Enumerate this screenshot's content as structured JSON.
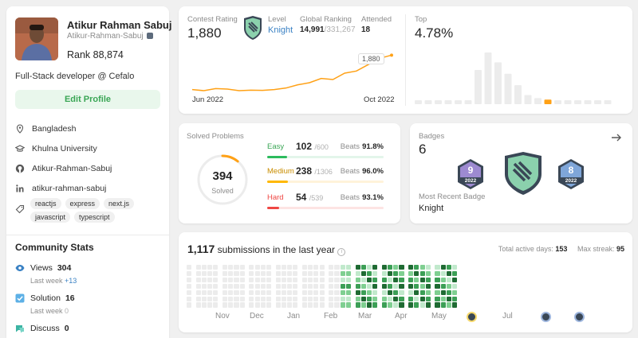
{
  "profile": {
    "name": "Atikur Rahman Sabuj",
    "username": "Atikur-Rahman-Sabuj",
    "rank": "Rank 88,874",
    "bio": "Full-Stack developer @ Cefalo",
    "edit_label": "Edit Profile",
    "location": "Bangladesh",
    "school": "Khulna University",
    "github": "Atikur-Rahman-Sabuj",
    "linkedin": "atikur-rahman-sabuj",
    "skills": [
      "reactjs",
      "express",
      "next.js",
      "javascript",
      "typescript"
    ]
  },
  "community": {
    "title": "Community Stats",
    "views_label": "Views",
    "views_value": "304",
    "views_sub": "Last week",
    "views_delta": "+13",
    "solution_label": "Solution",
    "solution_value": "16",
    "solution_sub": "Last week",
    "solution_delta": "0",
    "discuss_label": "Discuss",
    "discuss_value": "0"
  },
  "contest": {
    "rating_label": "Contest Rating",
    "rating_value": "1,880",
    "level_label": "Level",
    "level_value": "Knight",
    "global_label": "Global Ranking",
    "global_value": "14,991",
    "global_total": "/331,267",
    "attended_label": "Attended",
    "attended_value": "18",
    "start_label": "Jun 2022",
    "end_label": "Oct 2022",
    "tooltip": "1,880",
    "top_label": "Top",
    "top_value": "4.78%"
  },
  "chart_data": [
    {
      "type": "line",
      "title": "Contest Rating",
      "x": [
        1,
        2,
        3,
        4,
        5,
        6,
        7,
        8,
        9,
        10,
        11,
        12,
        13,
        14,
        15,
        16,
        17,
        18
      ],
      "values": [
        1555,
        1545,
        1565,
        1560,
        1545,
        1550,
        1548,
        1555,
        1570,
        1600,
        1620,
        1660,
        1650,
        1710,
        1730,
        1790,
        1850,
        1880
      ],
      "xlabel_start": "Jun 2022",
      "xlabel_end": "Oct 2022"
    },
    {
      "type": "bar",
      "title": "Top",
      "values": [
        2,
        2,
        2,
        2,
        3,
        5,
        45,
        68,
        55,
        40,
        25,
        12,
        8,
        6,
        4,
        3,
        2,
        2,
        2,
        2
      ],
      "highlight_index": 13,
      "colors": {
        "normal": "#ececec",
        "highlight": "#ffa116"
      }
    }
  ],
  "solved": {
    "title": "Solved Problems",
    "total": "394",
    "total_label": "Solved",
    "rows": [
      {
        "name": "Easy",
        "count": "102",
        "total": "/600",
        "beats_label": "Beats",
        "beats": "91.8%",
        "fraction": 0.17,
        "color": "#2cbb5d",
        "track": "#e3f5ea"
      },
      {
        "name": "Medium",
        "count": "238",
        "total": "/1306",
        "beats_label": "Beats",
        "beats": "96.0%",
        "fraction": 0.18,
        "color": "#ffb800",
        "track": "#fff3da"
      },
      {
        "name": "Hard",
        "count": "54",
        "total": "/539",
        "beats_label": "Beats",
        "beats": "93.1%",
        "fraction": 0.1,
        "color": "#ef4743",
        "track": "#fde4e3"
      }
    ],
    "ring_fraction": 0.11
  },
  "badges": {
    "title": "Badges",
    "count": "6",
    "recent_label": "Most Recent Badge",
    "recent_value": "Knight",
    "badge1_num": "9",
    "badge1_year": "2022",
    "badge2_num": "8",
    "badge2_year": "2022"
  },
  "submissions": {
    "count": "1,117",
    "text": "submissions in the last year",
    "active_label": "Total active days:",
    "active_value": "153",
    "streak_label": "Max streak:",
    "streak_value": "95",
    "months": [
      "Nov",
      "Dec",
      "Jan",
      "Feb",
      "Mar",
      "Apr",
      "May",
      "Jul"
    ]
  },
  "colors": {
    "accent": "#ffa116",
    "green": "#2cbb5d",
    "link": "#3b82c4"
  }
}
